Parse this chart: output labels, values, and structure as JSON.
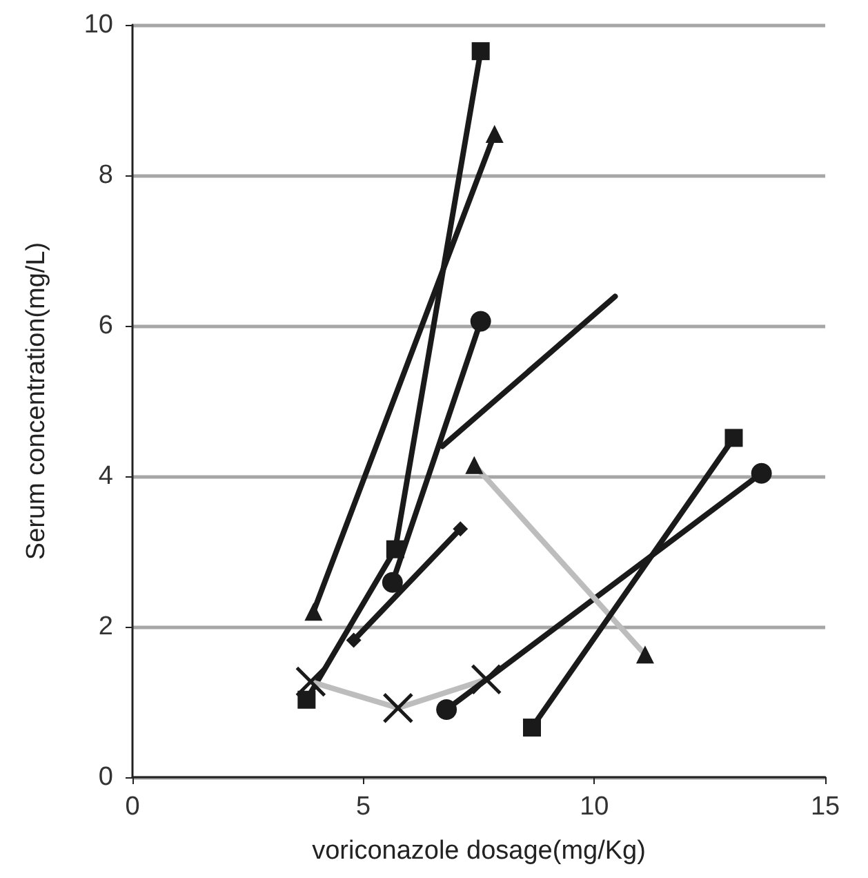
{
  "chart_data": {
    "type": "line",
    "xlabel": "voriconazole dosage(mg/Kg)",
    "ylabel": "Serum concentration(mg/L)",
    "xlim": [
      0,
      15
    ],
    "xticks": [
      0,
      5,
      10,
      15
    ],
    "ylim": [
      0,
      10
    ],
    "yticks": [
      0,
      2,
      4,
      6,
      8,
      10
    ],
    "grid": "y",
    "series": [
      {
        "color": "#1a1a1a",
        "marker": "square",
        "x": [
          3.77,
          5.69,
          7.54
        ],
        "values": [
          1.03,
          3.03,
          9.65
        ]
      },
      {
        "color": "#1a1a1a",
        "marker": "triangle",
        "x": [
          3.92,
          7.84
        ],
        "values": [
          2.2,
          8.55
        ]
      },
      {
        "color": "#1a1a1a",
        "marker": "circle",
        "x": [
          5.63,
          7.54
        ],
        "values": [
          2.59,
          6.06
        ]
      },
      {
        "color": "#1a1a1a",
        "x": [
          6.71,
          10.45
        ],
        "values": [
          4.4,
          6.39
        ]
      },
      {
        "color": "#1a1a1a",
        "marker": "diamond",
        "x": [
          4.79,
          7.1
        ],
        "values": [
          1.82,
          3.3
        ]
      },
      {
        "color": "#bdbdbd",
        "marker": "cross",
        "x": [
          3.86,
          5.75,
          7.66
        ],
        "values": [
          1.27,
          0.92,
          1.3
        ]
      },
      {
        "color": "#1a1a1a",
        "marker": "circle",
        "x": [
          6.8,
          13.62
        ],
        "values": [
          0.9,
          4.04
        ]
      },
      {
        "color": "#bdbdbd",
        "marker": "triangle",
        "x": [
          7.4,
          11.1
        ],
        "values": [
          4.15,
          1.63
        ]
      },
      {
        "color": "#1a1a1a",
        "marker": "square",
        "x": [
          8.65,
          13.02
        ],
        "values": [
          0.66,
          4.51
        ]
      }
    ]
  }
}
